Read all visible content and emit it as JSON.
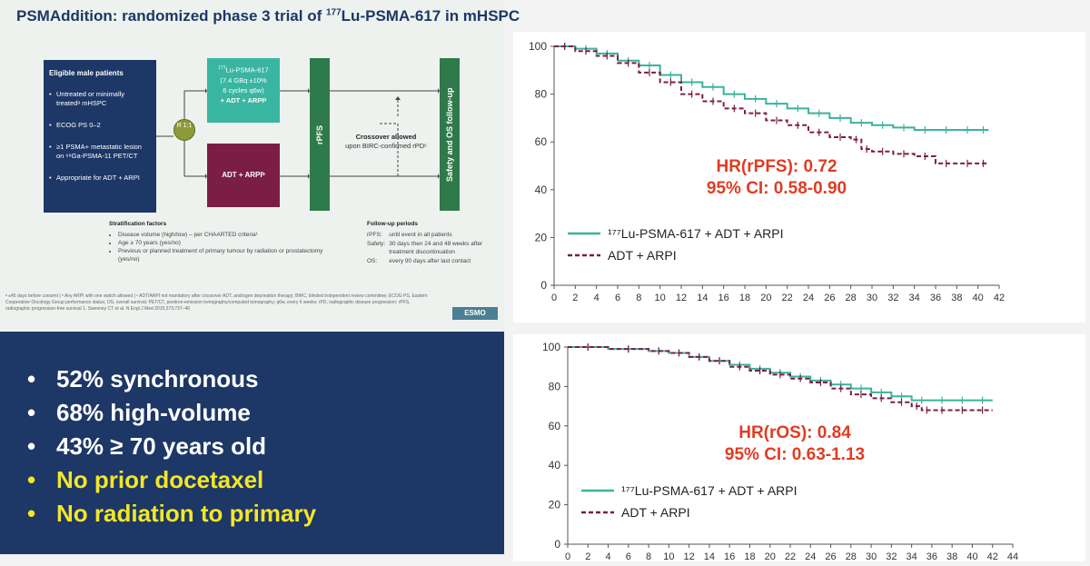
{
  "slide": {
    "title_prefix": "PSMAddition: randomized phase 3 trial of ",
    "title_sup": "177",
    "title_suffix": "Lu-PSMA-617 in mHSPC",
    "eligibility": {
      "heading": "Eligible male patients",
      "items": [
        "Untreated or minimally treatedᵃ mHSPC",
        "ECOG PS 0–2",
        "≥1 PSMA+ metastatic lesion on ⁶⁸Ga-PSMA-11 PET/CT",
        "Appropriate for ADT + ARPI"
      ]
    },
    "randomization": "R 1:1",
    "arm1": {
      "sup": "177",
      "name": "Lu-PSMA-617",
      "dose": "(7.4 GBq ±10%",
      "cycles": "6 cycles q6w)",
      "combo": "+ ADT + ARPIᵇ"
    },
    "arm2": {
      "label": "ADT + ARPIᵇ"
    },
    "rpfs_label": "rPFS",
    "safety_label": "Safety and OS follow-up",
    "crossover": {
      "title": "Crossover allowed",
      "text": "upon BIRC-confirmed rPDᶜ"
    },
    "stratification": {
      "heading": "Stratification factors",
      "items": [
        "Disease volume (high/low) – per CHAARTED criteria¹",
        "Age ≥ 70 years (yes/no)",
        "Previous or planned treatment of primary tumour by radiation or prostatectomy (yes/no)"
      ]
    },
    "followup": {
      "heading": "Follow-up periods",
      "rows": [
        {
          "k": "rPFS:",
          "v": "until event in all patients"
        },
        {
          "k": "Safety:",
          "v": "30 days then 24 and 48 weeks after treatment discontinuation"
        },
        {
          "k": "OS:",
          "v": "every 90 days after last contact"
        }
      ]
    },
    "footnote": "ᵃ ≤45 days before consent | ᵇ Any ARPI with one switch allowed | ᶜ ADT/ARPI not mandatory after crossover ADT, androgen deprivation therapy; BIRC, blinded independent review committee; ECOG PS, Eastern Cooperative Oncology Group performance status; OS, overall survival; PET/CT, positron-emission tomography/computed tomography; q6w, every 6 weeks; rPD, radiographic disease progression; rPFS, radiographic progression-free survival 1. Sweeney CT et al. N Engl J Med 2015;373:737–46",
    "logo": "ESMO"
  },
  "highlights": [
    {
      "text": "52% synchronous",
      "color": "#ffffff"
    },
    {
      "text": "68% high-volume",
      "color": "#ffffff"
    },
    {
      "text": "43% ≥ 70 years old",
      "color": "#ffffff"
    },
    {
      "text": "No prior docetaxel",
      "color": "#f2e627"
    },
    {
      "text": "No radiation to primary",
      "color": "#f2e627"
    }
  ],
  "colors": {
    "teal": "#3bb39c",
    "maroon": "#7b1e46",
    "hr_red": "#e03c23",
    "navy": "#1d3766"
  },
  "chart_data": [
    {
      "type": "line",
      "title": "",
      "xlabel": "",
      "ylabel": "",
      "xlim": [
        0,
        42
      ],
      "ylim": [
        0,
        100
      ],
      "xticks": [
        0,
        2,
        4,
        6,
        8,
        10,
        12,
        14,
        16,
        18,
        20,
        22,
        24,
        26,
        28,
        30,
        32,
        34,
        36,
        38,
        40,
        42
      ],
      "yticks": [
        0,
        20,
        40,
        60,
        80,
        100
      ],
      "annotation": [
        "HR(rPFS): 0.72",
        "95% CI: 0.58-0.90"
      ],
      "legend_placement": "bottom-left",
      "series": [
        {
          "name": "¹⁷⁷Lu-PSMA-617 + ADT + ARPI",
          "color": "#3bb39c",
          "dashed": false,
          "x": [
            0,
            2,
            4,
            6,
            8,
            10,
            12,
            14,
            16,
            18,
            20,
            22,
            24,
            26,
            28,
            30,
            32,
            34,
            36,
            38,
            40,
            41
          ],
          "y": [
            100,
            99,
            97,
            94,
            92,
            88,
            85,
            83,
            80,
            78,
            76,
            74,
            72,
            70,
            68,
            67,
            66,
            65,
            65,
            65,
            65,
            65
          ]
        },
        {
          "name": "ADT + ARPI",
          "color": "#7b1e46",
          "dashed": true,
          "x": [
            0,
            2,
            4,
            6,
            8,
            10,
            12,
            14,
            16,
            18,
            20,
            22,
            24,
            26,
            28,
            29,
            30,
            32,
            34,
            36,
            38,
            40,
            41
          ],
          "y": [
            100,
            98,
            96,
            93,
            89,
            85,
            80,
            77,
            74,
            72,
            69,
            67,
            64,
            62,
            61,
            57,
            56,
            55,
            54,
            51,
            51,
            51,
            51
          ]
        }
      ]
    },
    {
      "type": "line",
      "title": "",
      "xlabel": "",
      "ylabel": "",
      "xlim": [
        0,
        44
      ],
      "ylim": [
        0,
        100
      ],
      "xticks": [
        0,
        2,
        4,
        6,
        8,
        10,
        12,
        14,
        16,
        18,
        20,
        22,
        24,
        26,
        28,
        30,
        32,
        34,
        36,
        38,
        40,
        42,
        44
      ],
      "yticks": [
        0,
        20,
        40,
        60,
        80,
        100
      ],
      "annotation": [
        "HR(rOS): 0.84",
        "95% CI: 0.63-1.13"
      ],
      "legend_placement": "bottom-left",
      "series": [
        {
          "name": "¹⁷⁷Lu-PSMA-617 + ADT + ARPI",
          "color": "#3bb39c",
          "dashed": false,
          "x": [
            0,
            4,
            8,
            10,
            12,
            14,
            16,
            18,
            20,
            22,
            24,
            26,
            28,
            30,
            32,
            34,
            36,
            38,
            40,
            42
          ],
          "y": [
            100,
            99,
            98,
            97,
            95,
            93,
            91,
            89,
            87,
            85,
            83,
            81,
            79,
            77,
            75,
            73,
            73,
            73,
            73,
            73
          ]
        },
        {
          "name": "ADT + ARPI",
          "color": "#7b1e46",
          "dashed": true,
          "x": [
            0,
            4,
            8,
            10,
            12,
            14,
            16,
            18,
            20,
            22,
            24,
            26,
            28,
            30,
            32,
            34,
            35,
            36,
            38,
            40,
            42
          ],
          "y": [
            100,
            99,
            98,
            97,
            95,
            93,
            90,
            88,
            86,
            84,
            82,
            79,
            76,
            74,
            72,
            70,
            68,
            68,
            68,
            68,
            68
          ]
        }
      ]
    }
  ]
}
